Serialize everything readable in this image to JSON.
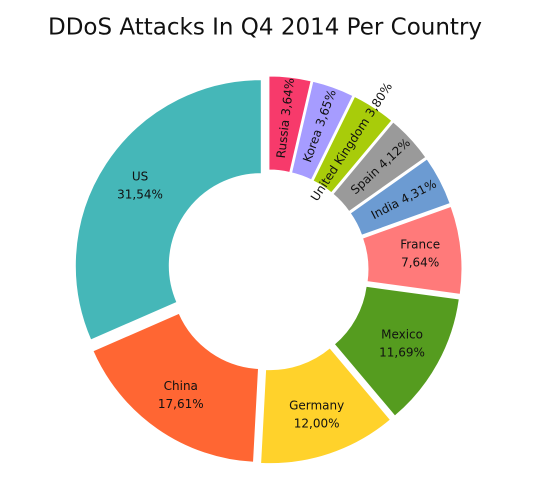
{
  "chart_data": {
    "type": "donut",
    "title": "DDoS Attacks In Q4 2014 Per Country",
    "categories": [
      "Russia",
      "Korea",
      "United Kingdom",
      "Spain",
      "India",
      "France",
      "Mexico",
      "Germany",
      "China",
      "US"
    ],
    "values": [
      3.64,
      3.65,
      3.8,
      4.12,
      4.31,
      7.64,
      11.69,
      12.0,
      17.61,
      31.54
    ],
    "value_labels": [
      "3,64%",
      "3,65%",
      "3,80%",
      "4,12%",
      "4,31%",
      "7,64%",
      "11,69%",
      "12,00%",
      "17,61%",
      "31,54%"
    ],
    "colors": [
      "#f73a6b",
      "#a69cff",
      "#a8cc0a",
      "#9a9a9a",
      "#6c9bd2",
      "#ff7a7a",
      "#559c1f",
      "#ffd22b",
      "#ff6633",
      "#45b7b8"
    ]
  }
}
